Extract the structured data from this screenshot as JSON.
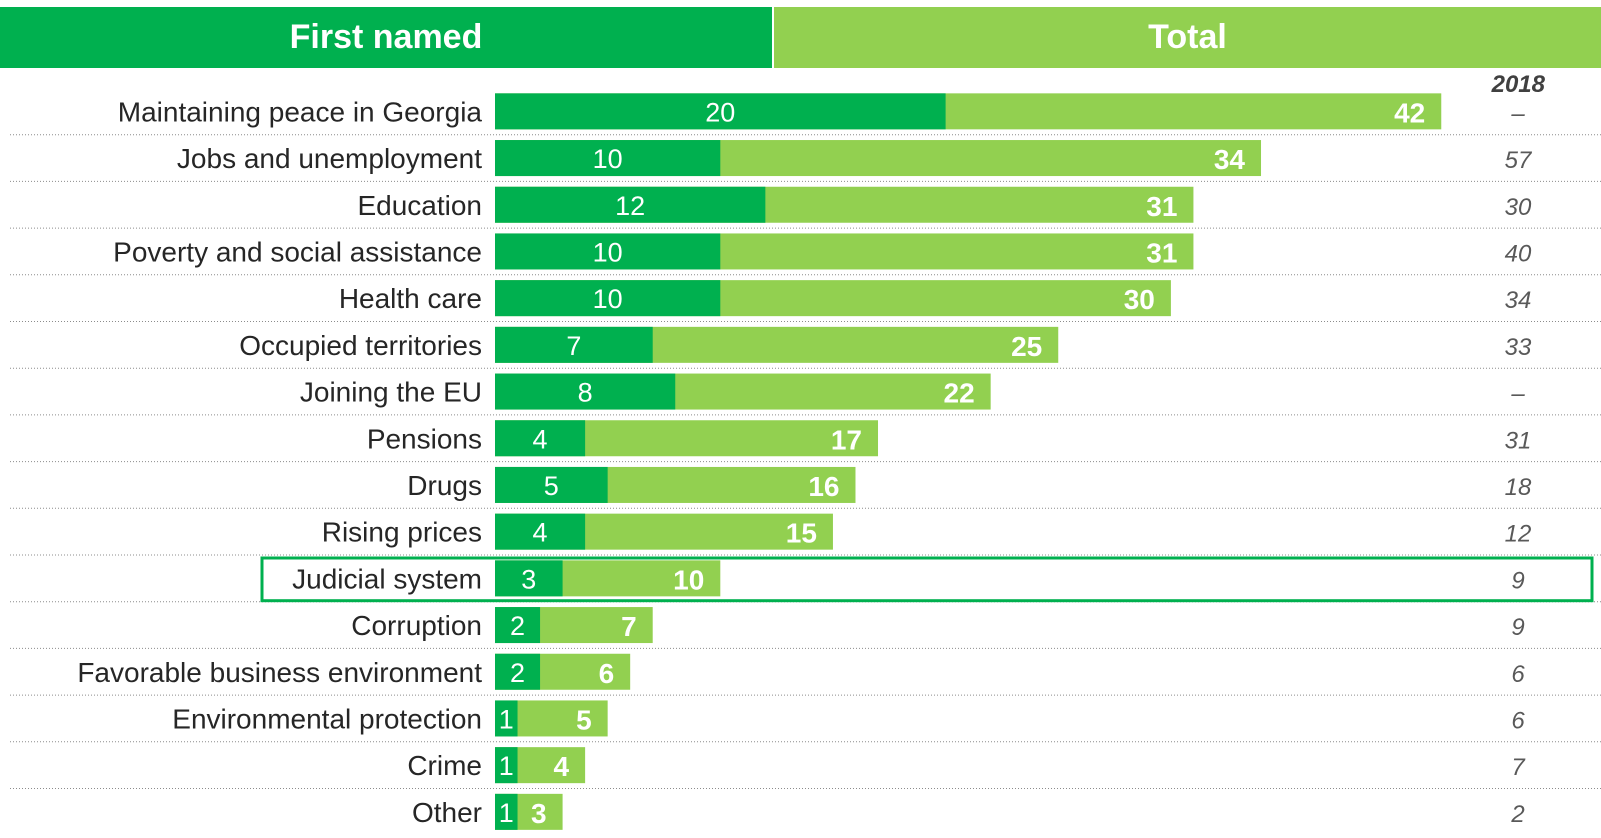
{
  "header": {
    "first_named": "First named",
    "total": "Total"
  },
  "colors": {
    "first": "#00b04f",
    "total": "#92d050",
    "separator": "#8c8c8c",
    "text": "#262626",
    "muted": "#595959",
    "highlight": "#00b04f"
  },
  "chart_data": {
    "type": "bar",
    "orientation": "horizontal",
    "stacked": "overlay",
    "year_label": "2018",
    "highlighted": "Judicial system",
    "series": [
      {
        "name": "First named",
        "color": "#00b04f",
        "values": [
          20,
          10,
          12,
          10,
          10,
          7,
          8,
          4,
          5,
          4,
          3,
          2,
          2,
          1,
          1,
          1
        ]
      },
      {
        "name": "Total",
        "color": "#92d050",
        "values": [
          42,
          34,
          31,
          31,
          30,
          25,
          22,
          17,
          16,
          15,
          10,
          7,
          6,
          5,
          4,
          3
        ]
      }
    ],
    "categories": [
      "Maintaining peace in Georgia",
      "Jobs and unemployment",
      "Education",
      "Poverty and social assistance",
      "Health care",
      "Occupied territories",
      "Joining the EU",
      "Pensions",
      "Drugs",
      "Rising prices",
      "Judicial system",
      "Corruption",
      "Favorable business environment",
      "Environmental protection",
      "Crime",
      "Other"
    ],
    "values_2018": [
      "–",
      "57",
      "30",
      "40",
      "34",
      "33",
      "–",
      "31",
      "18",
      "12",
      "9",
      "9",
      "6",
      "6",
      "7",
      "2"
    ]
  }
}
